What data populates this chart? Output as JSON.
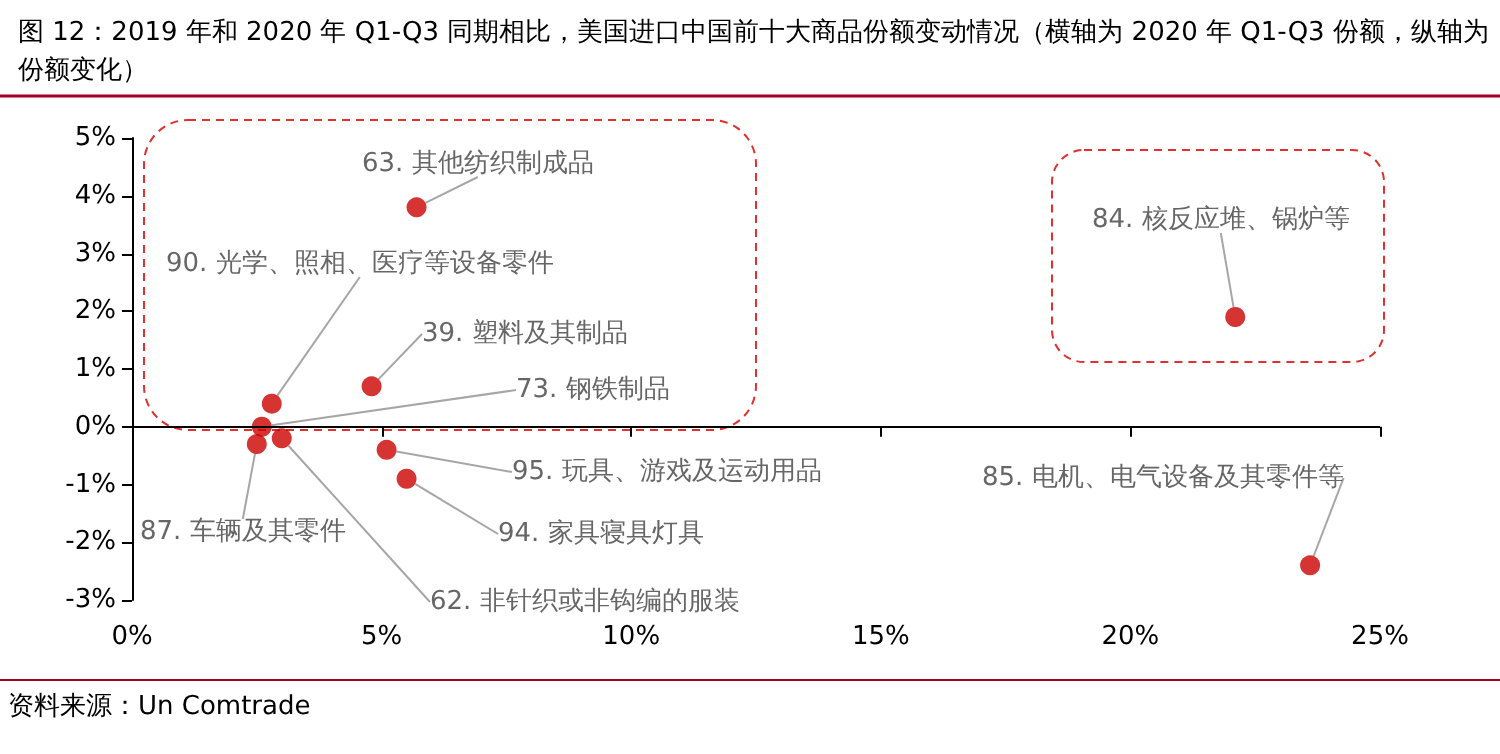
{
  "chart_data": {
    "type": "scatter",
    "title": "图 12：2019 年和 2020 年 Q1-Q3 同期相比，美国进口中国前十大商品份额变动情况（横轴为 2020 年 Q1-Q3 份额，纵轴为份额变化）",
    "annotations": [
      "资料来源：Un Comtrade"
    ],
    "xlim": [
      0,
      25
    ],
    "xticks": [
      {
        "value": 0,
        "label": "0%"
      },
      {
        "value": 5,
        "label": "5%"
      },
      {
        "value": 10,
        "label": "10%"
      },
      {
        "value": 15,
        "label": "15%"
      },
      {
        "value": 20,
        "label": "20%"
      },
      {
        "value": 25,
        "label": "25%"
      }
    ],
    "ylim": [
      -3,
      5
    ],
    "yticks": [
      {
        "value": -3,
        "label": "-3%"
      },
      {
        "value": -2,
        "label": "-2%"
      },
      {
        "value": -1,
        "label": "-1%"
      },
      {
        "value": 0,
        "label": "0%"
      },
      {
        "value": 1,
        "label": "1%"
      },
      {
        "value": 2,
        "label": "2%"
      },
      {
        "value": 3,
        "label": "3%"
      },
      {
        "value": 4,
        "label": "4%"
      },
      {
        "value": 5,
        "label": "5%"
      }
    ],
    "ref_lines": [
      {
        "axis": "y",
        "value": 0,
        "color": "#000000"
      }
    ],
    "grid": false,
    "legend": false,
    "marker": "circle",
    "series": [
      {
        "name": "63. 其他纺织制成品",
        "color": "#cc0000",
        "x": [
          5.7
        ],
        "values": [
          3.8
        ]
      },
      {
        "name": "90. 光学、照相、医疗等设备零件",
        "color": "#cc0000",
        "x": [
          2.8
        ],
        "values": [
          0.4
        ]
      },
      {
        "name": "39. 塑料及其制品",
        "color": "#cc0000",
        "x": [
          4.8
        ],
        "values": [
          0.7
        ]
      },
      {
        "name": "73. 钢铁制品",
        "color": "#cc0000",
        "x": [
          2.6
        ],
        "values": [
          0.0
        ]
      },
      {
        "name": "87. 车辆及其零件",
        "color": "#cc0000",
        "x": [
          2.5
        ],
        "values": [
          -0.3
        ]
      },
      {
        "name": "62. 非针织或非钩编的服装",
        "color": "#cc0000",
        "x": [
          3.0
        ],
        "values": [
          -0.2
        ]
      },
      {
        "name": "95. 玩具、游戏及运动用品",
        "color": "#cc0000",
        "x": [
          5.1
        ],
        "values": [
          -0.4
        ]
      },
      {
        "name": "94. 家具寝具灯具",
        "color": "#cc0000",
        "x": [
          5.5
        ],
        "values": [
          -0.9
        ]
      },
      {
        "name": "84. 核反应堆、锅炉等",
        "color": "#cc0000",
        "x": [
          22.1
        ],
        "values": [
          1.9
        ]
      },
      {
        "name": "85. 电机、电气设备及其零件等",
        "color": "#cc0000",
        "x": [
          23.6
        ],
        "values": [
          -2.4
        ]
      }
    ]
  }
}
